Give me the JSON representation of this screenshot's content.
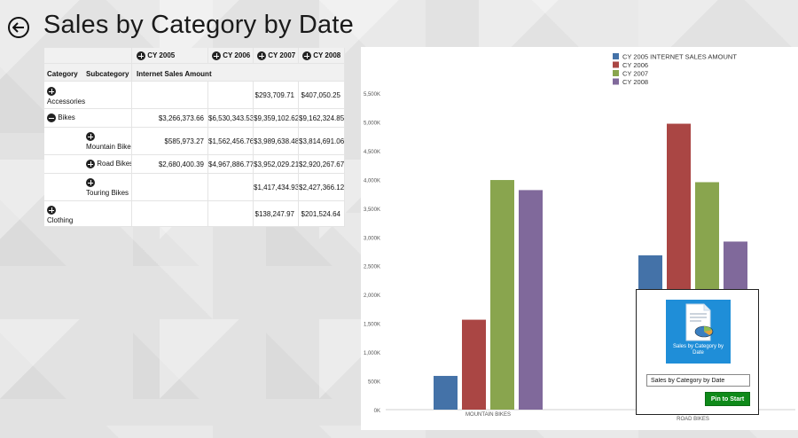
{
  "header": {
    "title": "Sales by Category by Date"
  },
  "table": {
    "row_headers": [
      "Category",
      "Subcategory"
    ],
    "measure_label": "Internet Sales Amount",
    "years": [
      "CY 2005",
      "CY 2006",
      "CY 2007",
      "CY 2008"
    ],
    "rows": [
      {
        "category": "Accessories",
        "subcategory": "",
        "expand": "plus",
        "values": [
          "",
          "",
          "$293,709.71",
          "$407,050.25"
        ]
      },
      {
        "category": "Bikes",
        "subcategory": "",
        "expand": "minus",
        "values": [
          "$3,266,373.66",
          "$6,530,343.53",
          "$9,359,102.62",
          "$9,162,324.85"
        ]
      },
      {
        "category": "",
        "subcategory": "Mountain Bikes",
        "expand": "plus",
        "values": [
          "$585,973.27",
          "$1,562,456.76",
          "$3,989,638.48",
          "$3,814,691.06"
        ]
      },
      {
        "category": "",
        "subcategory": "Road Bikes",
        "expand": "plus",
        "values": [
          "$2,680,400.39",
          "$4,967,886.77",
          "$3,952,029.21",
          "$2,920,267.67"
        ]
      },
      {
        "category": "",
        "subcategory": "Touring Bikes",
        "expand": "plus",
        "values": [
          "",
          "",
          "$1,417,434.93",
          "$2,427,366.12"
        ]
      },
      {
        "category": "Clothing",
        "subcategory": "",
        "expand": "plus",
        "values": [
          "",
          "",
          "$138,247.97",
          "$201,524.64"
        ]
      }
    ]
  },
  "chart_data": {
    "type": "bar",
    "categories": [
      "MOUNTAIN BIKES",
      "ROAD BIKES"
    ],
    "series": [
      {
        "name": "CY 2005 INTERNET SALES AMOUNT",
        "color": "#4472a8",
        "values": [
          585.97,
          2680.4
        ]
      },
      {
        "name": "CY 2006",
        "color": "#aa4644",
        "values": [
          1562.46,
          4967.89
        ]
      },
      {
        "name": "CY 2007",
        "color": "#89a54e",
        "values": [
          3989.64,
          3952.03
        ]
      },
      {
        "name": "CY 2008",
        "color": "#80699b",
        "values": [
          3814.69,
          2920.27
        ]
      }
    ],
    "ylim": [
      0,
      5500
    ],
    "yticks": [
      "0K",
      "500K",
      "1,000K",
      "1,500K",
      "2,000K",
      "2,500K",
      "3,000K",
      "3,500K",
      "4,000K",
      "4,500K",
      "5,000K",
      "5,500K"
    ],
    "legend": "top-center",
    "grid": false
  },
  "pin_flyout": {
    "tile_label": "Sales by Category by Date",
    "name_value": "Sales by Category by Date",
    "button_label": "Pin to Start",
    "tile_color": "#1f8ed8",
    "button_color": "#0f8a1a"
  }
}
